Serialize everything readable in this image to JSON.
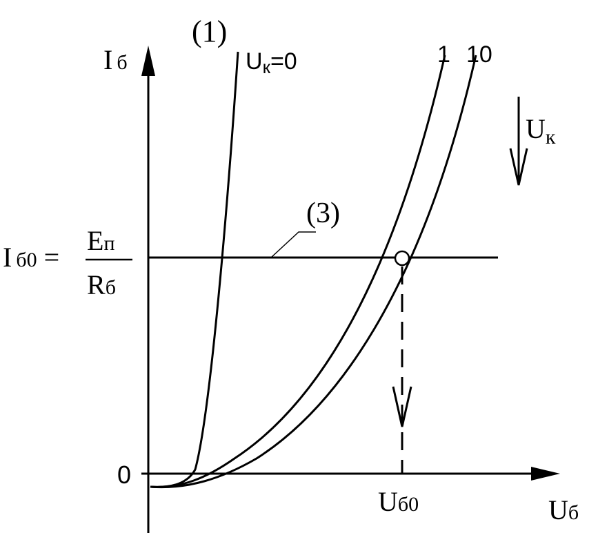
{
  "y_axis_label": {
    "main": "I",
    "sub": "б"
  },
  "x_axis_label": {
    "main": "U",
    "sub": "б"
  },
  "origin_label": "0",
  "curve_group_label": "(1)",
  "curves": [
    {
      "label": {
        "main": "U",
        "sub": "к",
        "rest": "=0"
      }
    },
    {
      "label": "1"
    },
    {
      "label": "10"
    }
  ],
  "direction_label": {
    "main": "U",
    "sub": "к"
  },
  "load_line_label": "(3)",
  "current_level": {
    "main": "I",
    "sub": "б0",
    "eq": "=",
    "numerator": {
      "main": "E",
      "sub": "п"
    },
    "denominator": {
      "main": "R",
      "sub": "б"
    }
  },
  "operating_voltage": {
    "main": "U",
    "sub": "б0"
  }
}
